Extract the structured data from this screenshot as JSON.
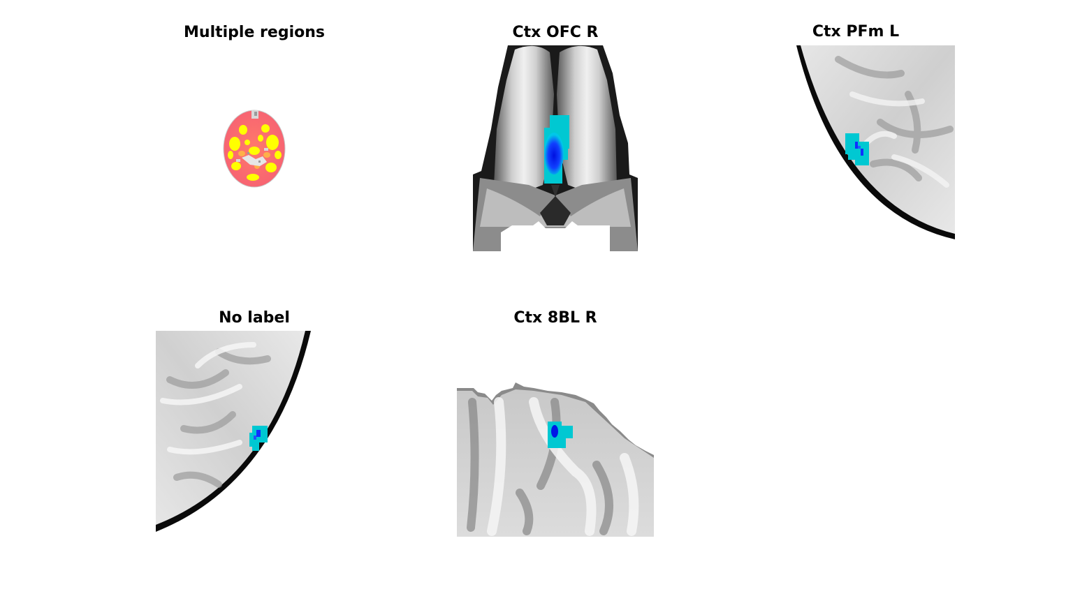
{
  "figure": {
    "panels": [
      {
        "title": "Multiple regions"
      },
      {
        "title": "Ctx OFC R"
      },
      {
        "title": "Ctx PFm L"
      },
      {
        "title": "No label"
      },
      {
        "title": "Ctx 8BL R"
      }
    ]
  },
  "colors": {
    "background": "#ffffff",
    "roi_outline": "#00c8d2",
    "roi_core": "#0018e6",
    "activation_hot": "#ffff00",
    "activation_warm": "#ff6464",
    "brain_gray": "#b0b0b0"
  }
}
